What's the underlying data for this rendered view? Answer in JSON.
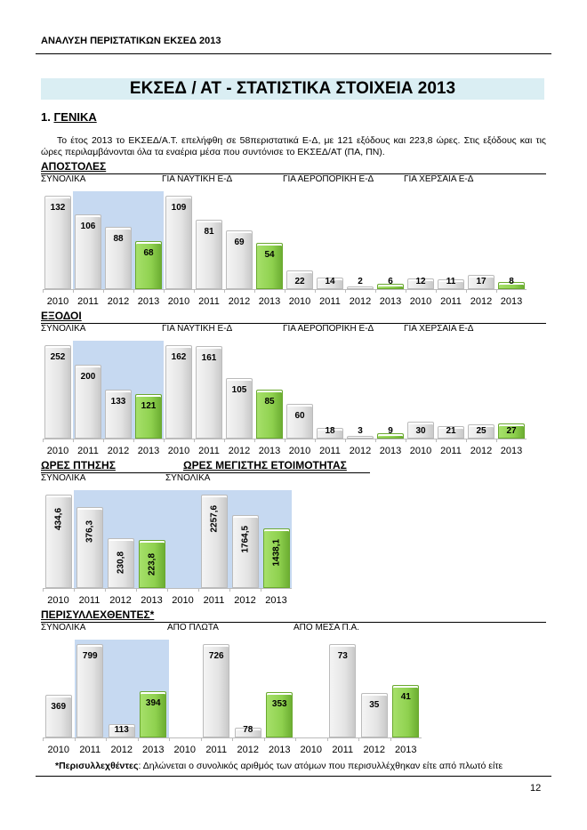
{
  "header": "ΑΝΑΛΥΣΗ ΠΕΡΙΣΤΑΤΙΚΩΝ ΕΚΣΕΔ 2013",
  "title": "ΕΚΣΕΔ / ΑΤ - ΣΤΑΤΙΣΤΙΚΑ ΣΤΟΙΧΕΙΑ 2013",
  "section_num": "1. ",
  "section_title": "ΓΕΝΙΚΑ",
  "intro": "Το έτος 2013 το ΕΚΣΕΔ/Α.Τ. επελήφθη σε 58περιστατικά Ε-Δ, με 121 εξόδους και 223,8 ώρες. Στις εξόδους και τις ώρες περιλαμβάνονται όλα τα εναέρια μέσα που συντόνισε το ΕΚΣΕΔ/ΑΤ (ΠΑ, ΠΝ).",
  "footnote_bold": "*Περισυλλεχθέντες",
  "footnote_text": ": Δηλώνεται ο συνολικός αριθμός των ατόμων που περισυλλέχθηκαν είτε από πλωτό είτε",
  "page_number": "12",
  "colors": {
    "current_year": "#92d050",
    "past_year": "#e4e4e4",
    "panel_bg": "#c6d9f1",
    "title_bg": "#daeef3"
  },
  "chart_data": [
    {
      "type": "bar",
      "id": "apostoles",
      "title": "ΑΠΟΣΤΟΛΕΣ",
      "categories": [
        "2010",
        "2011",
        "2012",
        "2013"
      ],
      "panels": [
        {
          "label": "ΣΥΝΟΛΙΚΑ",
          "values": [
            132,
            106,
            88,
            68
          ],
          "ymax": 132,
          "bg": true
        },
        {
          "label": "ΓΙΑ ΝΑΥΤΙΚΗ Ε-Δ",
          "values": [
            109,
            81,
            69,
            54
          ],
          "ymax": 109
        },
        {
          "label": "ΓΙΑ ΑΕΡΟΠΟΡΙΚΗ Ε-Δ",
          "values": [
            22,
            14,
            2,
            6
          ],
          "ymax": 109
        },
        {
          "label": "ΓΙΑ ΧΕΡΣΑΙΑ Ε-Δ",
          "values": [
            12,
            11,
            17,
            8
          ],
          "ymax": 109
        }
      ]
    },
    {
      "type": "bar",
      "id": "exodoi",
      "title": "ΕΞΟΔΟΙ",
      "categories": [
        "2010",
        "2011",
        "2012",
        "2013"
      ],
      "panels": [
        {
          "label": "ΣΥΝΟΛΙΚΑ",
          "values": [
            252,
            200,
            133,
            121
          ],
          "ymax": 252,
          "bg": true
        },
        {
          "label": "ΓΙΑ ΝΑΥΤΙΚΗ Ε-Δ",
          "values": [
            162,
            161,
            105,
            85
          ],
          "ymax": 162
        },
        {
          "label": "ΓΙΑ ΑΕΡΟΠΟΡΙΚΗ Ε-Δ",
          "values": [
            60,
            18,
            3,
            9
          ],
          "ymax": 162
        },
        {
          "label": "ΓΙΑ ΧΕΡΣΑΙΑ Ε-Δ",
          "values": [
            30,
            21,
            25,
            27
          ],
          "ymax": 162
        }
      ]
    },
    {
      "type": "bar",
      "id": "ores",
      "title": "ΩΡΕΣ ΠΤΗΣΗΣ",
      "title2": "ΩΡΕΣ ΜΕΓΙΣΤΗΣ ΕΤΟΙΜΟΤΗΤΑΣ",
      "categories": [
        "2010",
        "2011",
        "2012",
        "2013"
      ],
      "vertical_labels": true,
      "panels": [
        {
          "label": "ΣΥΝΟΛΙΚΑ",
          "values": [
            "434,6",
            "376,3",
            "230,8",
            "223,8"
          ],
          "ymax": 434.6,
          "bg": true
        },
        {
          "label": "ΣΥΝΟΛΙΚΑ",
          "values": [
            null,
            "2257,6",
            "1764,5",
            "1438,1"
          ],
          "ymax": 2257.6,
          "bg": true
        }
      ]
    },
    {
      "type": "bar",
      "id": "perisyl",
      "title": "ΠΕΡΙΣΥΛΛΕΧΘΕΝΤΕΣ*",
      "categories": [
        "2010",
        "2011",
        "2012",
        "2013"
      ],
      "panels": [
        {
          "label": "ΣΥΝΟΛΙΚΑ",
          "values": [
            369,
            799,
            113,
            394
          ],
          "ymax": 799,
          "bg": true
        },
        {
          "label": "ΑΠΟ ΠΛΩΤΑ",
          "values": [
            null,
            726,
            78,
            353
          ],
          "ymax": 726
        },
        {
          "label": "ΑΠΟ ΜΕΣΑ Π.Α.",
          "values": [
            null,
            73,
            35,
            41
          ],
          "ymax": 73
        }
      ]
    }
  ]
}
